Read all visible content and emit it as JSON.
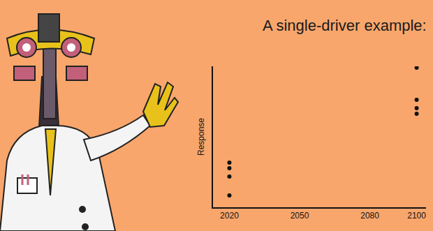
{
  "chart_data": {
    "type": "scatter",
    "title": "A single-driver example:",
    "ylabel": "Response",
    "x": [
      2020,
      2020,
      2020,
      2020,
      2100,
      2100,
      2100,
      2100
    ],
    "values": [
      3.17,
      2.77,
      2.18,
      0.84,
      9.9,
      7.62,
      7.03,
      6.63
    ],
    "color": "#111111",
    "marker": "circle",
    "xlim": [
      2013,
      2104
    ],
    "xticks": [
      2020,
      2050,
      2080,
      2100
    ],
    "ylim": [
      0,
      10
    ],
    "tick_labels": "x",
    "grid": false
  }
}
